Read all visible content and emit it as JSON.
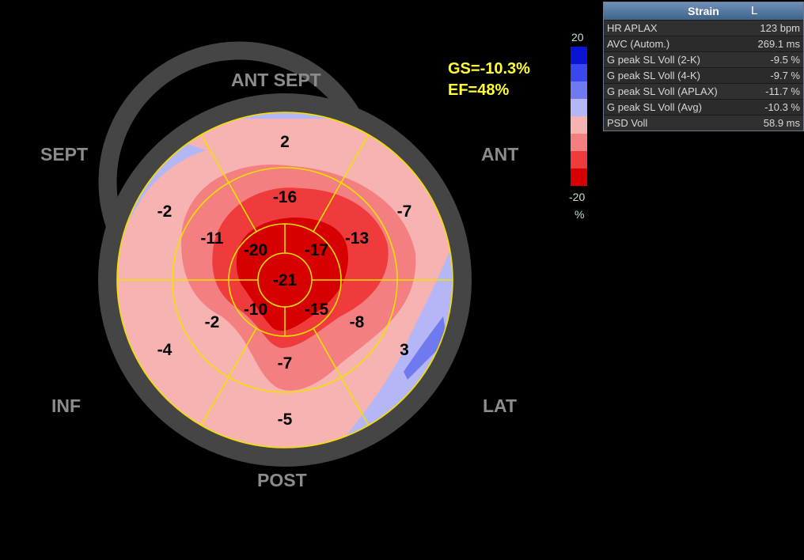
{
  "walls": {
    "ant_sept": "ANT  SEPT",
    "ant": "ANT",
    "sept": "SEPT",
    "inf": "INF",
    "lat": "LAT",
    "post": "POST"
  },
  "global": {
    "gs": "GS=-10.3%",
    "ef": "EF=48%"
  },
  "scale": {
    "top": "20",
    "bottom": "-20",
    "unit": "%",
    "colors": [
      "#0a14d2",
      "#3a47ec",
      "#6f7af0",
      "#b4b6f6",
      "#f7b2b2",
      "#f47f80",
      "#ef3b3c",
      "#d70000"
    ]
  },
  "segments": [
    {
      "id": "basal-ant-sept",
      "value": "2"
    },
    {
      "id": "basal-ant",
      "value": "-7"
    },
    {
      "id": "basal-lat",
      "value": "3"
    },
    {
      "id": "basal-post",
      "value": "-5"
    },
    {
      "id": "basal-inf",
      "value": "-4"
    },
    {
      "id": "basal-sept",
      "value": "-2"
    },
    {
      "id": "mid-ant-sept",
      "value": "-16"
    },
    {
      "id": "mid-ant",
      "value": "-13"
    },
    {
      "id": "mid-lat",
      "value": "-8"
    },
    {
      "id": "mid-post",
      "value": "-7"
    },
    {
      "id": "mid-inf",
      "value": "-2"
    },
    {
      "id": "mid-sept",
      "value": "-11"
    },
    {
      "id": "apical-ant",
      "value": "-17"
    },
    {
      "id": "apical-lat",
      "value": "-15"
    },
    {
      "id": "apical-inf",
      "value": "-10"
    },
    {
      "id": "apical-sept",
      "value": "-20"
    },
    {
      "id": "apex",
      "value": "-21"
    }
  ],
  "panel": {
    "title": "Strain",
    "flag": "L",
    "rows": [
      {
        "label": "HR APLAX",
        "value": "123 bpm"
      },
      {
        "label": "AVC (Autom.)",
        "value": "269.1 ms"
      },
      {
        "label": "G peak SL Voll (2-K)",
        "value": "-9.5 %"
      },
      {
        "label": "G peak SL Voll (4-K)",
        "value": "-9.7 %"
      },
      {
        "label": "G peak SL Voll (APLAX)",
        "value": "-11.7 %"
      },
      {
        "label": "G peak SL Voll (Avg)",
        "value": "-10.3 %"
      },
      {
        "label": "PSD Voll",
        "value": "58.9 ms"
      }
    ]
  }
}
